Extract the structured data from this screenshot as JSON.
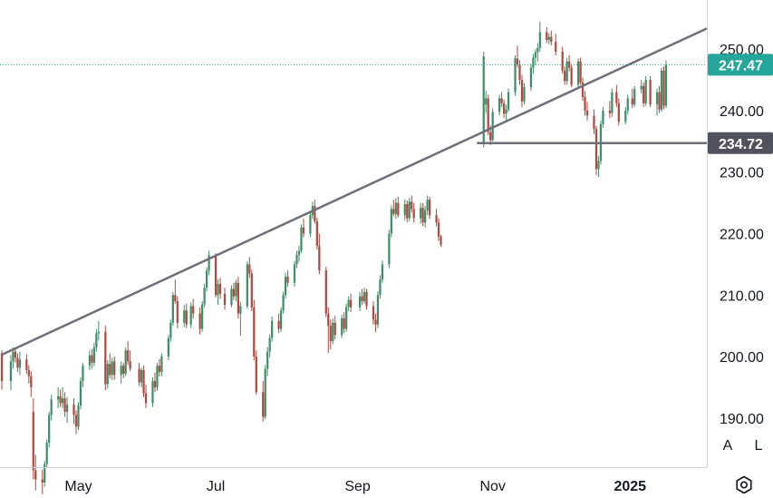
{
  "chart_data": {
    "type": "candlestick",
    "x_tick_labels": [
      "May",
      "Jul",
      "Sep",
      "Nov",
      "2025"
    ],
    "y_tick_labels": [
      "250.00",
      "240.00",
      "230.00",
      "220.00",
      "210.00",
      "200.00",
      "190.00"
    ],
    "ylim": [
      182,
      258
    ],
    "last_price": {
      "label": "247.47",
      "value": 247.47,
      "color": "#26a69a"
    },
    "horizontal_level": {
      "label": "234.72",
      "value": 234.72,
      "color": "#50535e"
    },
    "trendline": {
      "start": {
        "date": "2024-03-28",
        "value": 200.3
      },
      "end": {
        "date": "2025-01-17",
        "value": 250.3
      }
    },
    "colors": {
      "up": "#3d8f67",
      "down": "#b3473f"
    },
    "ohlc": [
      [
        "2024-03-28",
        200.5,
        201.0,
        194.6,
        196.0
      ],
      [
        "2024-04-01",
        196.0,
        200.2,
        194.5,
        199.2
      ],
      [
        "2024-04-02",
        199.2,
        201.5,
        198.0,
        200.8
      ],
      [
        "2024-04-03",
        200.8,
        201.5,
        199.0,
        199.8
      ],
      [
        "2024-04-04",
        199.8,
        200.5,
        197.5,
        198.2
      ],
      [
        "2024-04-05",
        198.2,
        200.8,
        197.0,
        199.5
      ],
      [
        "2024-04-08",
        199.5,
        200.4,
        197.2,
        197.8
      ],
      [
        "2024-04-09",
        197.8,
        198.6,
        195.6,
        196.8
      ],
      [
        "2024-04-10",
        196.8,
        197.6,
        193.4,
        195.0
      ],
      [
        "2024-04-11",
        191.0,
        193.2,
        180.0,
        181.5
      ],
      [
        "2024-04-12",
        181.5,
        184.0,
        178.2,
        180.0
      ],
      [
        "2024-04-15",
        180.0,
        181.6,
        177.6,
        179.5
      ],
      [
        "2024-04-16",
        179.5,
        183.0,
        178.8,
        182.5
      ],
      [
        "2024-04-17",
        182.5,
        186.5,
        182.0,
        186.0
      ],
      [
        "2024-04-18",
        186.0,
        191.0,
        185.2,
        190.5
      ],
      [
        "2024-04-19",
        190.5,
        193.8,
        189.6,
        193.0
      ],
      [
        "2024-04-22",
        193.0,
        195.0,
        191.6,
        193.5
      ],
      [
        "2024-04-23",
        193.5,
        194.6,
        191.8,
        192.4
      ],
      [
        "2024-04-24",
        192.4,
        195.0,
        191.6,
        193.2
      ],
      [
        "2024-04-25",
        193.2,
        194.2,
        190.2,
        191.0
      ],
      [
        "2024-04-26",
        191.0,
        193.4,
        189.2,
        192.2
      ],
      [
        "2024-04-29",
        192.2,
        193.2,
        189.0,
        190.5
      ],
      [
        "2024-04-30",
        190.5,
        191.2,
        187.4,
        188.6
      ],
      [
        "2024-05-01",
        188.6,
        192.6,
        188.0,
        192.0
      ],
      [
        "2024-05-02",
        192.0,
        196.6,
        191.4,
        196.0
      ],
      [
        "2024-05-03",
        196.0,
        199.0,
        195.0,
        198.5
      ],
      [
        "2024-05-06",
        198.5,
        201.0,
        197.8,
        200.2
      ],
      [
        "2024-05-07",
        200.2,
        201.2,
        198.0,
        199.0
      ],
      [
        "2024-05-08",
        199.0,
        202.2,
        198.4,
        201.5
      ],
      [
        "2024-05-09",
        201.5,
        204.5,
        200.8,
        203.8
      ],
      [
        "2024-05-10",
        203.8,
        205.8,
        202.6,
        204.0
      ],
      [
        "2024-05-13",
        204.0,
        205.0,
        194.5,
        195.5
      ],
      [
        "2024-05-14",
        195.5,
        199.4,
        194.8,
        198.8
      ],
      [
        "2024-05-15",
        198.8,
        200.5,
        196.4,
        197.0
      ],
      [
        "2024-05-16",
        197.0,
        199.8,
        196.2,
        199.2
      ],
      [
        "2024-05-17",
        199.2,
        200.0,
        196.2,
        197.0
      ],
      [
        "2024-05-20",
        197.0,
        199.2,
        195.6,
        198.5
      ],
      [
        "2024-05-21",
        198.5,
        199.0,
        196.5,
        197.2
      ],
      [
        "2024-05-22",
        197.2,
        201.5,
        196.8,
        201.0
      ],
      [
        "2024-05-23",
        201.0,
        202.5,
        198.6,
        199.2
      ],
      [
        "2024-05-24",
        199.2,
        201.0,
        197.6,
        198.0
      ],
      [
        "2024-05-28",
        198.0,
        199.0,
        195.2,
        195.8
      ],
      [
        "2024-05-29",
        195.8,
        198.2,
        195.0,
        197.8
      ],
      [
        "2024-05-30",
        197.8,
        198.5,
        193.4,
        194.0
      ],
      [
        "2024-05-31",
        194.0,
        195.4,
        191.6,
        192.4
      ],
      [
        "2024-06-03",
        192.4,
        196.6,
        191.8,
        196.0
      ],
      [
        "2024-06-04",
        196.0,
        197.4,
        194.2,
        195.0
      ],
      [
        "2024-06-05",
        195.0,
        199.0,
        194.4,
        198.5
      ],
      [
        "2024-06-06",
        198.5,
        199.6,
        196.8,
        197.5
      ],
      [
        "2024-06-07",
        197.5,
        200.5,
        196.8,
        200.0
      ],
      [
        "2024-06-10",
        200.0,
        203.5,
        199.4,
        203.0
      ],
      [
        "2024-06-11",
        203.0,
        206.0,
        202.4,
        205.5
      ],
      [
        "2024-06-12",
        205.5,
        210.5,
        205.0,
        210.0
      ],
      [
        "2024-06-13",
        210.0,
        212.5,
        208.6,
        209.0
      ],
      [
        "2024-06-14",
        209.0,
        209.8,
        204.6,
        205.5
      ],
      [
        "2024-06-17",
        205.5,
        208.4,
        204.8,
        207.5
      ],
      [
        "2024-06-18",
        207.5,
        208.6,
        204.6,
        205.2
      ],
      [
        "2024-06-20",
        205.2,
        208.8,
        204.6,
        208.2
      ],
      [
        "2024-06-21",
        208.2,
        209.4,
        206.2,
        207.0
      ],
      [
        "2024-06-24",
        207.0,
        208.0,
        203.6,
        204.5
      ],
      [
        "2024-06-25",
        204.5,
        209.0,
        204.0,
        208.5
      ],
      [
        "2024-06-26",
        208.5,
        211.8,
        208.0,
        211.2
      ],
      [
        "2024-06-27",
        211.2,
        214.5,
        210.6,
        214.0
      ],
      [
        "2024-06-28",
        214.0,
        217.2,
        213.2,
        216.5
      ],
      [
        "2024-07-01",
        216.5,
        216.8,
        209.6,
        210.0
      ],
      [
        "2024-07-02",
        210.0,
        212.6,
        208.4,
        211.8
      ],
      [
        "2024-07-03",
        211.8,
        212.8,
        209.4,
        210.2
      ],
      [
        "2024-07-05",
        210.2,
        211.2,
        207.6,
        208.4
      ],
      [
        "2024-07-08",
        208.4,
        211.6,
        208.0,
        211.0
      ],
      [
        "2024-07-09",
        211.0,
        212.0,
        209.2,
        209.8
      ],
      [
        "2024-07-10",
        209.8,
        212.5,
        209.0,
        212.0
      ],
      [
        "2024-07-11",
        212.0,
        213.0,
        206.2,
        207.0
      ],
      [
        "2024-07-12",
        207.0,
        208.8,
        203.4,
        208.2
      ],
      [
        "2024-07-15",
        208.2,
        215.5,
        207.8,
        215.0
      ],
      [
        "2024-07-16",
        215.0,
        216.2,
        212.8,
        213.5
      ],
      [
        "2024-07-17",
        213.5,
        214.2,
        207.4,
        208.0
      ],
      [
        "2024-07-18",
        208.0,
        209.2,
        199.4,
        200.0
      ],
      [
        "2024-07-19",
        200.0,
        201.0,
        193.8,
        194.2
      ],
      [
        "2024-07-22",
        194.2,
        196.0,
        189.4,
        190.2
      ],
      [
        "2024-07-23",
        190.2,
        198.6,
        189.8,
        198.0
      ],
      [
        "2024-07-24",
        198.0,
        201.5,
        196.8,
        200.8
      ],
      [
        "2024-07-25",
        200.8,
        203.6,
        199.8,
        203.0
      ],
      [
        "2024-07-26",
        203.0,
        206.5,
        202.4,
        205.8
      ],
      [
        "2024-07-29",
        205.8,
        207.0,
        203.8,
        204.5
      ],
      [
        "2024-07-30",
        204.5,
        208.0,
        204.0,
        207.5
      ],
      [
        "2024-07-31",
        207.5,
        210.5,
        207.0,
        210.0
      ],
      [
        "2024-08-01",
        210.0,
        213.6,
        209.4,
        213.0
      ],
      [
        "2024-08-02",
        213.0,
        214.0,
        211.4,
        212.0
      ],
      [
        "2024-08-05",
        212.0,
        215.5,
        211.4,
        215.0
      ],
      [
        "2024-08-06",
        215.0,
        217.2,
        214.4,
        216.5
      ],
      [
        "2024-08-07",
        216.5,
        218.0,
        215.4,
        217.2
      ],
      [
        "2024-08-08",
        217.2,
        221.5,
        216.8,
        221.0
      ],
      [
        "2024-08-09",
        221.0,
        222.4,
        219.4,
        220.0
      ],
      [
        "2024-08-12",
        220.0,
        223.5,
        219.4,
        223.0
      ],
      [
        "2024-08-13",
        223.0,
        225.2,
        222.4,
        224.5
      ],
      [
        "2024-08-14",
        224.5,
        225.5,
        221.6,
        222.0
      ],
      [
        "2024-08-15",
        222.0,
        222.6,
        217.4,
        218.0
      ],
      [
        "2024-08-16",
        218.0,
        220.0,
        213.4,
        214.0
      ],
      [
        "2024-08-19",
        214.0,
        214.6,
        206.4,
        207.0
      ],
      [
        "2024-08-20",
        207.0,
        208.0,
        200.6,
        205.0
      ],
      [
        "2024-08-21",
        205.0,
        206.0,
        201.2,
        202.5
      ],
      [
        "2024-08-22",
        202.5,
        206.2,
        202.0,
        205.5
      ],
      [
        "2024-08-23",
        205.5,
        206.6,
        202.8,
        203.5
      ],
      [
        "2024-08-26",
        203.5,
        206.8,
        203.0,
        206.2
      ],
      [
        "2024-08-27",
        206.2,
        207.2,
        203.8,
        204.5
      ],
      [
        "2024-08-28",
        204.5,
        208.6,
        204.0,
        208.0
      ],
      [
        "2024-08-29",
        208.0,
        209.8,
        207.4,
        209.2
      ],
      [
        "2024-08-30",
        209.2,
        210.2,
        207.2,
        208.0
      ],
      [
        "2024-09-03",
        208.0,
        210.5,
        207.4,
        209.8
      ],
      [
        "2024-09-04",
        209.8,
        211.0,
        208.4,
        209.0
      ],
      [
        "2024-09-05",
        209.0,
        211.2,
        208.6,
        210.5
      ],
      [
        "2024-09-06",
        210.5,
        211.0,
        207.6,
        208.2
      ],
      [
        "2024-09-09",
        208.2,
        209.0,
        205.2,
        206.0
      ],
      [
        "2024-09-10",
        206.0,
        207.0,
        204.0,
        205.2
      ],
      [
        "2024-09-11",
        205.2,
        210.6,
        204.6,
        210.0
      ],
      [
        "2024-09-12",
        210.0,
        213.2,
        209.4,
        212.5
      ],
      [
        "2024-09-13",
        212.5,
        215.6,
        212.0,
        215.0
      ],
      [
        "2024-09-16",
        215.0,
        220.6,
        214.4,
        220.0
      ],
      [
        "2024-09-17",
        220.0,
        224.6,
        219.4,
        224.0
      ],
      [
        "2024-09-18",
        224.0,
        225.5,
        222.8,
        223.2
      ],
      [
        "2024-09-19",
        223.2,
        225.8,
        222.4,
        225.0
      ],
      [
        "2024-09-20",
        225.0,
        226.0,
        222.6,
        223.0
      ],
      [
        "2024-09-23",
        223.0,
        225.6,
        222.2,
        224.8
      ],
      [
        "2024-09-24",
        224.8,
        225.4,
        221.8,
        222.5
      ],
      [
        "2024-09-25",
        222.5,
        225.8,
        222.0,
        225.2
      ],
      [
        "2024-09-26",
        225.2,
        226.2,
        223.4,
        224.0
      ],
      [
        "2024-09-27",
        224.0,
        225.0,
        221.8,
        222.5
      ],
      [
        "2024-09-30",
        222.5,
        225.0,
        221.6,
        224.2
      ],
      [
        "2024-10-01",
        224.2,
        225.0,
        221.2,
        221.8
      ],
      [
        "2024-10-02",
        221.8,
        224.5,
        221.0,
        223.8
      ],
      [
        "2024-10-03",
        223.8,
        226.2,
        223.0,
        225.5
      ],
      [
        "2024-10-04",
        225.5,
        226.0,
        222.4,
        223.0
      ],
      [
        "2024-10-07",
        223.0,
        224.0,
        221.2,
        221.8
      ],
      [
        "2024-10-08",
        221.8,
        222.5,
        218.8,
        219.5
      ],
      [
        "2024-10-09",
        219.5,
        219.8,
        217.8,
        218.2
      ],
      [
        "2024-10-28",
        234.6,
        249.6,
        234.0,
        248.8
      ],
      [
        "2024-10-29",
        241.0,
        243.2,
        239.6,
        242.0
      ],
      [
        "2024-10-30",
        242.0,
        242.6,
        236.0,
        236.5
      ],
      [
        "2024-10-31",
        236.5,
        237.6,
        234.4,
        235.2
      ],
      [
        "2024-11-01",
        235.2,
        240.4,
        235.0,
        239.8
      ],
      [
        "2024-11-04",
        239.8,
        242.6,
        239.2,
        242.0
      ],
      [
        "2024-11-05",
        242.0,
        243.0,
        240.6,
        241.2
      ],
      [
        "2024-11-06",
        241.2,
        241.8,
        238.8,
        239.5
      ],
      [
        "2024-11-07",
        239.5,
        241.0,
        238.2,
        240.2
      ],
      [
        "2024-11-08",
        240.2,
        243.6,
        239.8,
        243.0
      ],
      [
        "2024-11-11",
        243.0,
        249.0,
        242.4,
        248.5
      ],
      [
        "2024-11-12",
        248.5,
        250.6,
        247.0,
        247.5
      ],
      [
        "2024-11-13",
        247.5,
        248.2,
        244.2,
        245.0
      ],
      [
        "2024-11-14",
        245.0,
        245.8,
        240.6,
        241.5
      ],
      [
        "2024-11-15",
        241.5,
        244.5,
        241.0,
        243.8
      ],
      [
        "2024-11-18",
        243.8,
        247.6,
        243.2,
        247.0
      ],
      [
        "2024-11-19",
        247.0,
        249.2,
        246.0,
        248.6
      ],
      [
        "2024-11-20",
        248.6,
        250.0,
        247.4,
        249.5
      ],
      [
        "2024-11-21",
        249.5,
        251.0,
        248.0,
        250.2
      ],
      [
        "2024-11-22",
        250.2,
        254.5,
        249.6,
        252.8
      ],
      [
        "2024-11-25",
        252.8,
        253.6,
        251.0,
        251.5
      ],
      [
        "2024-11-26",
        251.5,
        252.6,
        250.8,
        252.0
      ],
      [
        "2024-11-27",
        252.0,
        253.0,
        250.6,
        251.2
      ],
      [
        "2024-11-29",
        251.2,
        252.5,
        249.0,
        249.6
      ],
      [
        "2024-12-02",
        249.6,
        250.4,
        246.0,
        246.5
      ],
      [
        "2024-12-03",
        246.5,
        247.2,
        244.2,
        244.8
      ],
      [
        "2024-12-04",
        244.8,
        248.6,
        244.2,
        248.0
      ],
      [
        "2024-12-05",
        248.0,
        249.0,
        246.4,
        247.0
      ],
      [
        "2024-12-06",
        247.0,
        247.6,
        243.8,
        244.2
      ],
      [
        "2024-12-09",
        244.2,
        248.5,
        243.8,
        248.0
      ],
      [
        "2024-12-10",
        248.0,
        248.6,
        244.2,
        244.6
      ],
      [
        "2024-12-11",
        244.6,
        245.4,
        241.6,
        242.2
      ],
      [
        "2024-12-12",
        242.2,
        243.2,
        239.2,
        240.0
      ],
      [
        "2024-12-13",
        240.0,
        241.4,
        238.4,
        239.2
      ],
      [
        "2024-12-16",
        239.2,
        240.2,
        236.2,
        237.0
      ],
      [
        "2024-12-17",
        237.0,
        237.5,
        229.5,
        230.5
      ],
      [
        "2024-12-18",
        230.5,
        232.6,
        229.2,
        231.8
      ],
      [
        "2024-12-19",
        231.8,
        238.4,
        231.2,
        237.8
      ],
      [
        "2024-12-20",
        237.8,
        240.6,
        237.2,
        240.0
      ],
      [
        "2024-12-23",
        240.0,
        241.6,
        238.8,
        239.6
      ],
      [
        "2024-12-24",
        239.6,
        243.6,
        239.0,
        243.0
      ],
      [
        "2024-12-26",
        243.0,
        244.2,
        240.6,
        241.2
      ],
      [
        "2024-12-27",
        241.2,
        242.0,
        237.6,
        238.2
      ],
      [
        "2024-12-30",
        238.2,
        240.6,
        237.8,
        240.0
      ],
      [
        "2024-12-31",
        240.0,
        242.6,
        239.4,
        242.0
      ],
      [
        "2025-01-02",
        242.0,
        243.6,
        240.4,
        241.0
      ],
      [
        "2025-01-03",
        241.0,
        244.0,
        240.6,
        243.5
      ],
      [
        "2025-01-06",
        243.5,
        245.0,
        242.8,
        244.0
      ],
      [
        "2025-01-07",
        244.0,
        244.6,
        240.6,
        241.2
      ],
      [
        "2025-01-08",
        241.2,
        245.6,
        240.8,
        245.0
      ],
      [
        "2025-01-10",
        245.0,
        245.6,
        240.6,
        241.0
      ],
      [
        "2025-01-13",
        241.0,
        243.6,
        239.2,
        243.0
      ],
      [
        "2025-01-14",
        243.0,
        244.0,
        239.6,
        240.2
      ],
      [
        "2025-01-15",
        240.2,
        247.0,
        239.8,
        246.5
      ],
      [
        "2025-01-16",
        246.5,
        247.2,
        240.2,
        240.8
      ],
      [
        "2025-01-17",
        240.8,
        248.2,
        240.4,
        247.47
      ]
    ]
  },
  "controls": {
    "auto_label": "A",
    "log_label": "L"
  }
}
